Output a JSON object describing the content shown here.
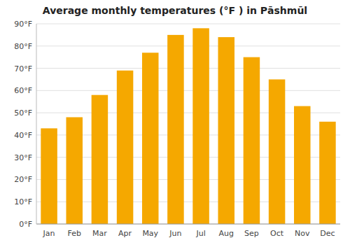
{
  "chart_data": {
    "type": "bar",
    "title": "Average monthly temperatures (°F ) in Pāshmūl",
    "categories": [
      "Jan",
      "Feb",
      "Mar",
      "Apr",
      "May",
      "Jun",
      "Jul",
      "Aug",
      "Sep",
      "Oct",
      "Nov",
      "Dec"
    ],
    "values": [
      43,
      48,
      58,
      69,
      77,
      85,
      88,
      84,
      75,
      65,
      53,
      46
    ],
    "color": "#F5A800",
    "ylim": [
      0,
      90
    ],
    "yticks": [
      {
        "value": 0,
        "label": "0°F"
      },
      {
        "value": 10,
        "label": "10°F"
      },
      {
        "value": 20,
        "label": "20°F"
      },
      {
        "value": 30,
        "label": "30°F"
      },
      {
        "value": 40,
        "label": "40°F"
      },
      {
        "value": 50,
        "label": "50°F"
      },
      {
        "value": 60,
        "label": "60°F"
      },
      {
        "value": 70,
        "label": "70°F"
      },
      {
        "value": 80,
        "label": "80°F"
      },
      {
        "value": 90,
        "label": "90°F"
      }
    ],
    "grid": true
  }
}
